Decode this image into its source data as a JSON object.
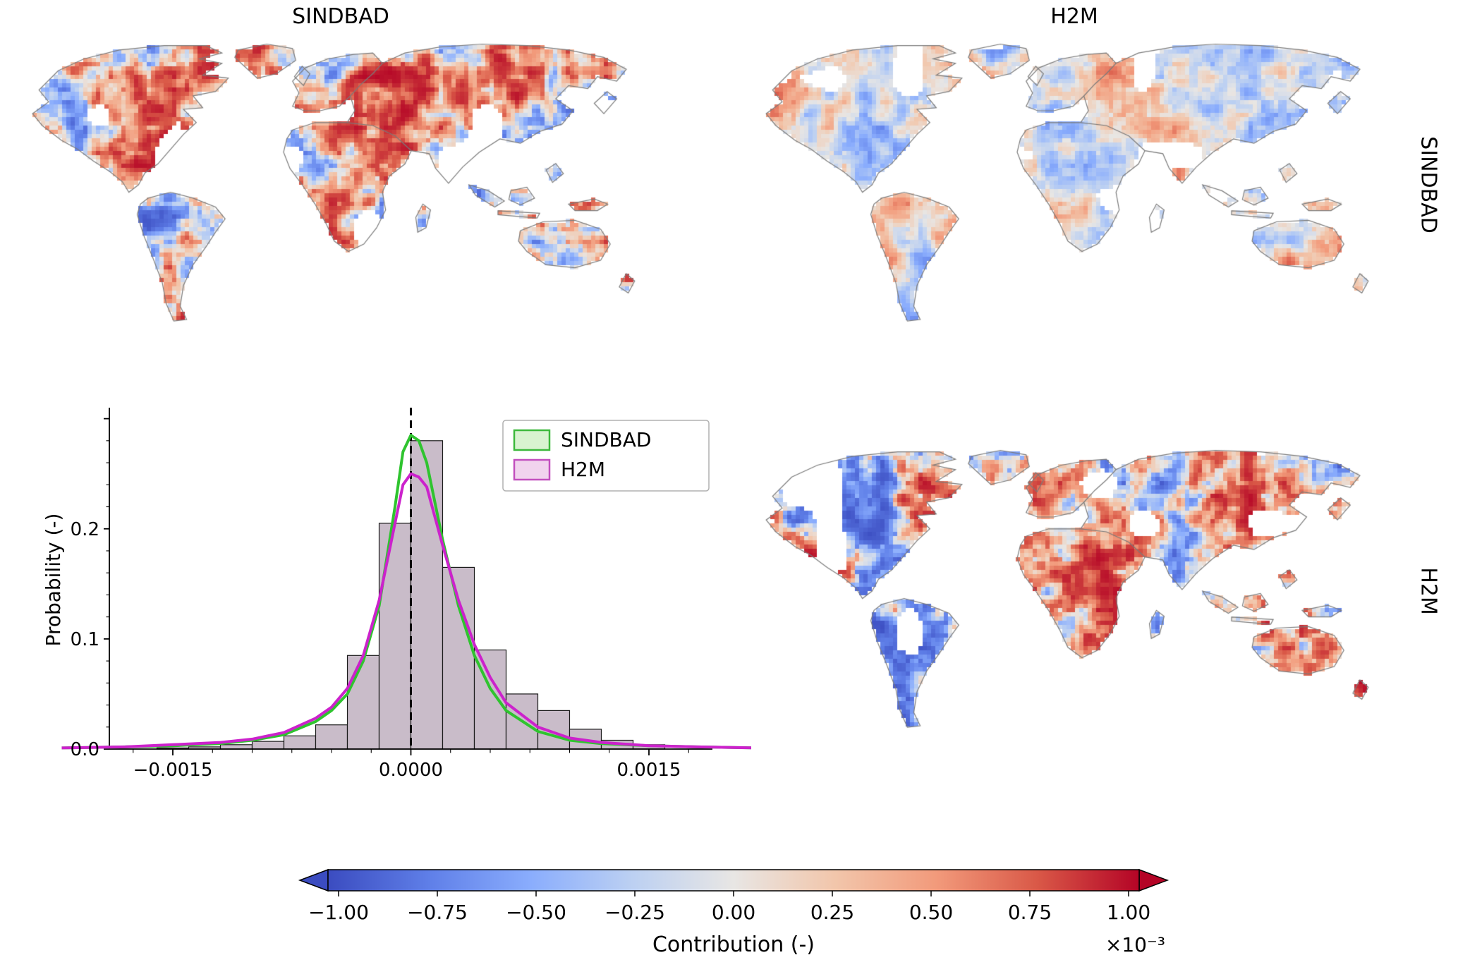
{
  "figure": {
    "column_titles": [
      "SINDBAD",
      "H2M"
    ],
    "row_labels": [
      "SINDBAD",
      "H2M"
    ]
  },
  "histogram": {
    "ylabel": "Probability (-)",
    "yticklabels": [
      "0.0",
      "0.1",
      "0.2"
    ],
    "xticklabels": [
      "−0.0015",
      "0.0000",
      "0.0015"
    ],
    "legend": [
      {
        "label": "SINDBAD",
        "face": "#d8f3d0",
        "edge": "#3cb93c"
      },
      {
        "label": "H2M",
        "face": "#f1d3ee",
        "edge": "#c24fbe"
      }
    ]
  },
  "colorbar": {
    "ticklabels": [
      "−1.00",
      "−0.75",
      "−0.50",
      "−0.25",
      "0.00",
      "0.25",
      "0.50",
      "0.75",
      "1.00"
    ],
    "label": "Contribution (-)",
    "scale_note": "×10⁻³",
    "colormap_stops": [
      "#3b4cc0",
      "#5f7fe8",
      "#8aadfd",
      "#bcd0f2",
      "#e8e6e4",
      "#f2c6ab",
      "#f29a7b",
      "#d95847",
      "#b40426"
    ]
  },
  "chart_data": [
    {
      "type": "heatmap",
      "panel": "top-left",
      "column": "SINDBAD",
      "row": "SINDBAD",
      "title": "SINDBAD",
      "extent": "global world map (Robinson-like projection, no Antarctica)",
      "units": "Contribution (-)",
      "value_range": [
        -0.001,
        0.001
      ],
      "colormap": "blue-white-red diverging",
      "note": "per-grid-cell contribution values; strong red clusters over Amazon, SE Asia, central North America; blue patches over western South America and central Africa; white = no data"
    },
    {
      "type": "heatmap",
      "panel": "top-right",
      "column": "H2M",
      "row": "SINDBAD",
      "title": "H2M",
      "extent": "global world map (Robinson-like projection, no Antarctica)",
      "units": "Contribution (-)",
      "value_range": [
        -0.001,
        0.001
      ],
      "colormap": "blue-white-red diverging",
      "note": "overall muted values compared to other panels"
    },
    {
      "type": "heatmap",
      "panel": "bottom-right",
      "column": "H2M",
      "row": "H2M",
      "extent": "global world map (Robinson-like projection, no Antarctica)",
      "units": "Contribution (-)",
      "value_range": [
        -0.001,
        0.001
      ],
      "colormap": "blue-white-red diverging",
      "note": "strong red clusters over Amazon, central Africa, SE Asia; blue patches over eastern Amazon and southern Africa"
    },
    {
      "type": "histogram",
      "panel": "bottom-left",
      "ylabel": "Probability (-)",
      "xlim": [
        -0.0019,
        0.0019
      ],
      "ylim": [
        0,
        0.31
      ],
      "xticks": [
        -0.0015,
        0.0,
        0.0015
      ],
      "yticks": [
        0.0,
        0.1,
        0.2
      ],
      "vline_x": 0.0,
      "bin_width": 0.0002,
      "bin_centers": [
        -0.0015,
        -0.0013,
        -0.0011,
        -0.0009,
        -0.0007,
        -0.0005,
        -0.0003,
        -0.0001,
        0.0001,
        0.0003,
        0.0005,
        0.0007,
        0.0009,
        0.0011,
        0.0013,
        0.0015
      ],
      "bin_values": [
        0.001,
        0.002,
        0.004,
        0.007,
        0.012,
        0.022,
        0.085,
        0.205,
        0.28,
        0.165,
        0.09,
        0.05,
        0.035,
        0.018,
        0.008,
        0.004
      ],
      "kde_x": [
        -0.0022,
        -0.0018,
        -0.0015,
        -0.0012,
        -0.001,
        -0.0008,
        -0.0006,
        -0.0005,
        -0.0004,
        -0.0003,
        -0.0002,
        -0.0001,
        -5e-05,
        0.0,
        5e-05,
        0.0001,
        0.0002,
        0.0003,
        0.0004,
        0.0005,
        0.0006,
        0.0008,
        0.001,
        0.0012,
        0.0015,
        0.0018,
        0.0022
      ],
      "series": [
        {
          "name": "SINDBAD",
          "color": "#2fc42f",
          "kde_y": [
            0.001,
            0.002,
            0.003,
            0.005,
            0.008,
            0.013,
            0.025,
            0.035,
            0.05,
            0.08,
            0.13,
            0.22,
            0.27,
            0.285,
            0.28,
            0.26,
            0.19,
            0.13,
            0.085,
            0.055,
            0.035,
            0.016,
            0.008,
            0.005,
            0.003,
            0.002,
            0.001
          ]
        },
        {
          "name": "H2M",
          "color": "#cc22cc",
          "kde_y": [
            0.001,
            0.002,
            0.004,
            0.006,
            0.009,
            0.015,
            0.028,
            0.038,
            0.055,
            0.085,
            0.135,
            0.205,
            0.24,
            0.25,
            0.247,
            0.238,
            0.185,
            0.135,
            0.095,
            0.065,
            0.042,
            0.02,
            0.01,
            0.006,
            0.003,
            0.002,
            0.001
          ]
        }
      ]
    }
  ]
}
